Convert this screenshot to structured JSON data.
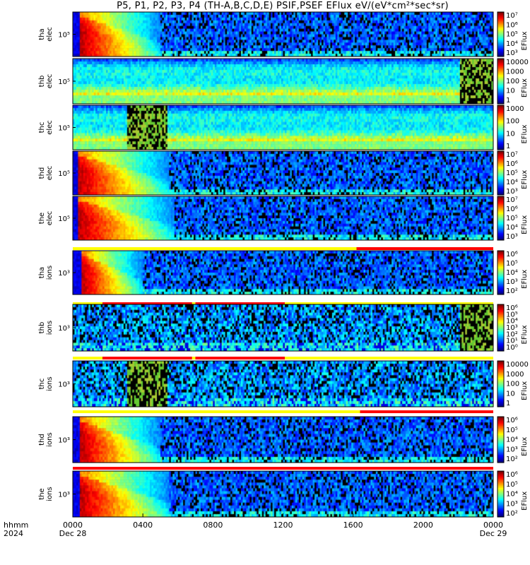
{
  "title": "P5, P1, P2, P3, P4 (TH-A,B,C,D,E) PSIF,PSEF EFlux eV/(eV*cm²*sec*sr)",
  "colors": {
    "flag_yellow": "#ffff00",
    "flag_red": "#ff0000",
    "background_dark": "#000000"
  },
  "x_axis": {
    "row_labels": [
      "hhmm",
      "2024"
    ],
    "ticks": [
      "0000",
      "0400",
      "0800",
      "1200",
      "1600",
      "2000",
      "0000"
    ],
    "dates": [
      "Dec 28",
      "Dec 29"
    ],
    "range_hours": [
      0,
      24
    ]
  },
  "chart_data": [
    {
      "type": "heatmap",
      "name": "tha elec",
      "ylabel": [
        "tha",
        "elec"
      ],
      "ytick": "10⁵",
      "colorbar": {
        "label": "EFlux",
        "ticks": [
          "10⁷",
          "10⁶",
          "10⁵",
          "10⁴",
          "10³"
        ]
      },
      "pattern": "storm",
      "storm_start_hours": 0.4,
      "storm_end_hours": 5.0
    },
    {
      "type": "heatmap",
      "name": "thb elec",
      "ylabel": [
        "thb",
        "elec"
      ],
      "ytick": "10⁵",
      "colorbar": {
        "label": "EFlux",
        "ticks": [
          "10000",
          "1000",
          "100",
          "10",
          "1"
        ]
      },
      "pattern": "banded",
      "data_gap_hours": [
        22.1,
        24.0
      ]
    },
    {
      "type": "heatmap",
      "name": "thc elec",
      "ylabel": [
        "thc",
        "elec"
      ],
      "ytick": "10⁵",
      "colorbar": {
        "label": "EFlux",
        "ticks": [
          "1000",
          "100",
          "10",
          "1"
        ]
      },
      "pattern": "banded",
      "data_gap_hours": [
        3.1,
        5.4
      ]
    },
    {
      "type": "heatmap",
      "name": "thd elec",
      "ylabel": [
        "thd",
        "elec"
      ],
      "ytick": "10⁵",
      "colorbar": {
        "label": "EFlux",
        "ticks": [
          "10⁷",
          "10⁶",
          "10⁵",
          "10⁴",
          "10³"
        ]
      },
      "pattern": "storm",
      "storm_start_hours": 0.3,
      "storm_end_hours": 5.5
    },
    {
      "type": "heatmap",
      "name": "the elec",
      "ylabel": [
        "the",
        "elec"
      ],
      "ytick": "10⁵",
      "colorbar": {
        "label": "EFlux",
        "ticks": [
          "10⁷",
          "10⁶",
          "10⁵",
          "10⁴",
          "10³"
        ]
      },
      "pattern": "storm",
      "storm_start_hours": 0.3,
      "storm_end_hours": 5.8,
      "flag_bar": {
        "yellow": [
          [
            0,
            16.2
          ]
        ],
        "red": [
          [
            16.2,
            24
          ]
        ]
      }
    },
    {
      "type": "heatmap",
      "name": "tha ions",
      "ylabel": [
        "tha",
        "ions"
      ],
      "ytick": "10³",
      "colorbar": {
        "label": "EFlux",
        "ticks": [
          "10⁶",
          "10⁵",
          "10⁴",
          "10³",
          "10²"
        ]
      },
      "pattern": "storm",
      "storm_start_hours": 0.5,
      "storm_end_hours": 4.0,
      "flag_bar": {
        "yellow": [
          [
            0,
            1.7
          ],
          [
            6.8,
            7.0
          ],
          [
            12.1,
            24
          ]
        ],
        "red": [
          [
            1.7,
            6.8
          ],
          [
            7.0,
            12.1
          ]
        ]
      }
    },
    {
      "type": "heatmap",
      "name": "thb ions",
      "ylabel": [
        "thb",
        "ions"
      ],
      "ytick": "10³",
      "colorbar": {
        "label": "EFlux",
        "ticks": [
          "10⁶",
          "10⁵",
          "10⁴",
          "10³",
          "10²",
          "10¹",
          "10⁰"
        ]
      },
      "pattern": "quiet",
      "data_gap_hours": [
        22.1,
        24.0
      ],
      "flag_bar": {
        "yellow": [
          [
            0,
            1.7
          ],
          [
            6.8,
            7.0
          ],
          [
            12.1,
            24
          ]
        ],
        "red": [
          [
            1.7,
            6.8
          ],
          [
            7.0,
            12.1
          ]
        ]
      }
    },
    {
      "type": "heatmap",
      "name": "thc ions",
      "ylabel": [
        "thc",
        "ions"
      ],
      "ytick": "10³",
      "colorbar": {
        "label": "EFlux",
        "ticks": [
          "10000",
          "1000",
          "100",
          "10",
          "1"
        ]
      },
      "pattern": "quiet",
      "data_gap_hours": [
        3.1,
        5.4
      ],
      "flag_bar": {
        "yellow": [
          [
            0,
            16.4
          ]
        ],
        "red": [
          [
            16.4,
            24
          ]
        ]
      }
    },
    {
      "type": "heatmap",
      "name": "thd ions",
      "ylabel": [
        "thd",
        "ions"
      ],
      "ytick": "10³",
      "colorbar": {
        "label": "EFlux",
        "ticks": [
          "10⁶",
          "10⁵",
          "10⁴",
          "10³",
          "10²"
        ]
      },
      "pattern": "storm",
      "storm_start_hours": 0.4,
      "storm_end_hours": 5.0,
      "flag_bar": {
        "yellow": [],
        "red": [
          [
            0,
            24
          ]
        ]
      }
    },
    {
      "type": "heatmap",
      "name": "the ions",
      "ylabel": [
        "the",
        "ions"
      ],
      "ytick": "10³",
      "colorbar": {
        "label": "EFlux",
        "ticks": [
          "10⁶",
          "10⁵",
          "10⁴",
          "10³",
          "10²"
        ]
      },
      "pattern": "storm",
      "storm_start_hours": 0.4,
      "storm_end_hours": 5.5
    }
  ]
}
